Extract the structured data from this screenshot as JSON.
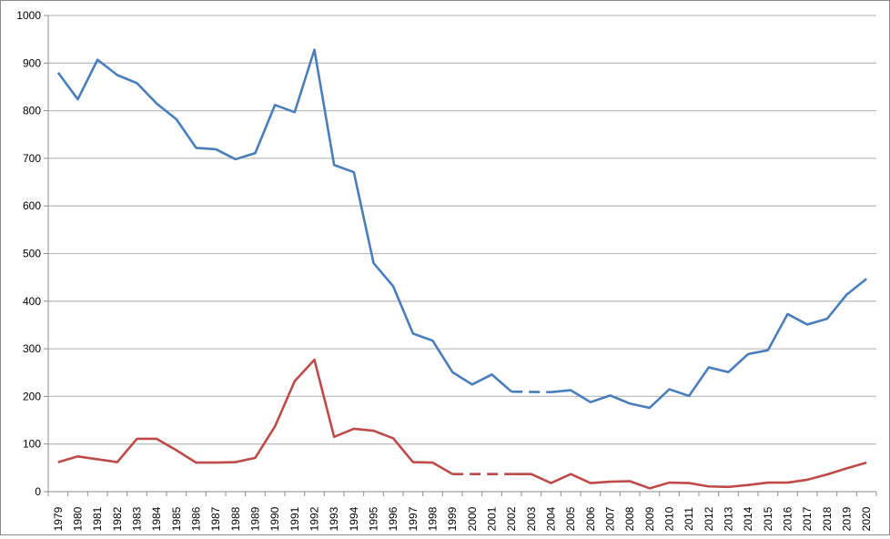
{
  "chart_data": {
    "type": "line",
    "title": "",
    "xlabel": "",
    "ylabel": "",
    "ylim": [
      0,
      1000
    ],
    "yticks": [
      0,
      100,
      200,
      300,
      400,
      500,
      600,
      700,
      800,
      900,
      1000
    ],
    "grid": true,
    "legend": "none",
    "x": [
      1979,
      1980,
      1981,
      1982,
      1983,
      1984,
      1985,
      1986,
      1987,
      1988,
      1989,
      1990,
      1991,
      1992,
      1993,
      1994,
      1995,
      1996,
      1997,
      1998,
      1999,
      2000,
      2001,
      2002,
      2003,
      2004,
      2005,
      2006,
      2007,
      2008,
      2009,
      2010,
      2011,
      2012,
      2013,
      2014,
      2015,
      2016,
      2017,
      2018,
      2019,
      2020
    ],
    "series": [
      {
        "color": "#4a7ebb",
        "gap_style": "dashed",
        "values": [
          880,
          824,
          907,
          875,
          858,
          815,
          782,
          722,
          719,
          698,
          711,
          812,
          797,
          928,
          686,
          671,
          480,
          431,
          332,
          317,
          251,
          225,
          246,
          210,
          null,
          209,
          213,
          188,
          202,
          185,
          176,
          215,
          201,
          261,
          251,
          289,
          297,
          373,
          351,
          363,
          414,
          447
        ]
      },
      {
        "color": "#be4b48",
        "gap_style": "dashed",
        "values": [
          62,
          74,
          68,
          62,
          111,
          111,
          87,
          61,
          61,
          62,
          71,
          137,
          232,
          277,
          115,
          132,
          128,
          112,
          62,
          61,
          37,
          null,
          null,
          37,
          37,
          18,
          37,
          18,
          21,
          22,
          7,
          19,
          18,
          11,
          10,
          14,
          19,
          19,
          25,
          36,
          49,
          61
        ]
      }
    ]
  }
}
